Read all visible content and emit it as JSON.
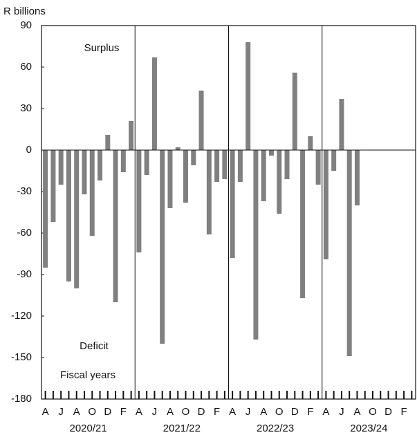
{
  "chart_data": {
    "type": "bar",
    "y_label": "R billions",
    "annotations": [
      "Surplus",
      "Deficit",
      "Fiscal years"
    ],
    "categories": [
      "A",
      null,
      "J",
      null,
      "A",
      null,
      "O",
      null,
      "D",
      null,
      "F",
      null,
      "A",
      null,
      "J",
      null,
      "A",
      null,
      "O",
      null,
      "D",
      null,
      "F",
      null,
      "A",
      null,
      "J",
      null,
      "A",
      null,
      "O",
      null,
      "D",
      null,
      "F",
      null,
      "A",
      null,
      "J",
      null,
      "A",
      null,
      "O",
      null,
      "D",
      null,
      "F",
      null
    ],
    "groups": [
      "2020/21",
      "2021/22",
      "2022/23",
      "2023/24"
    ],
    "values": [
      -85,
      -52,
      -25,
      -95,
      -100,
      -32,
      -62,
      -22,
      11,
      -110,
      -16,
      21,
      -74,
      -18,
      67,
      -140,
      -42,
      2,
      -38,
      -11,
      43,
      -61,
      -23,
      -21,
      -78,
      -23,
      78,
      -137,
      -37,
      -4,
      -46,
      -21,
      56,
      -107,
      10,
      -25,
      -79,
      -15,
      37,
      -149,
      -40,
      null,
      null,
      null,
      null,
      null,
      null,
      null
    ],
    "color": "#808080",
    "ylim": [
      -180,
      90
    ],
    "yticks": [
      -180,
      -150,
      -120,
      -90,
      -60,
      -30,
      0,
      30,
      60,
      90
    ]
  }
}
